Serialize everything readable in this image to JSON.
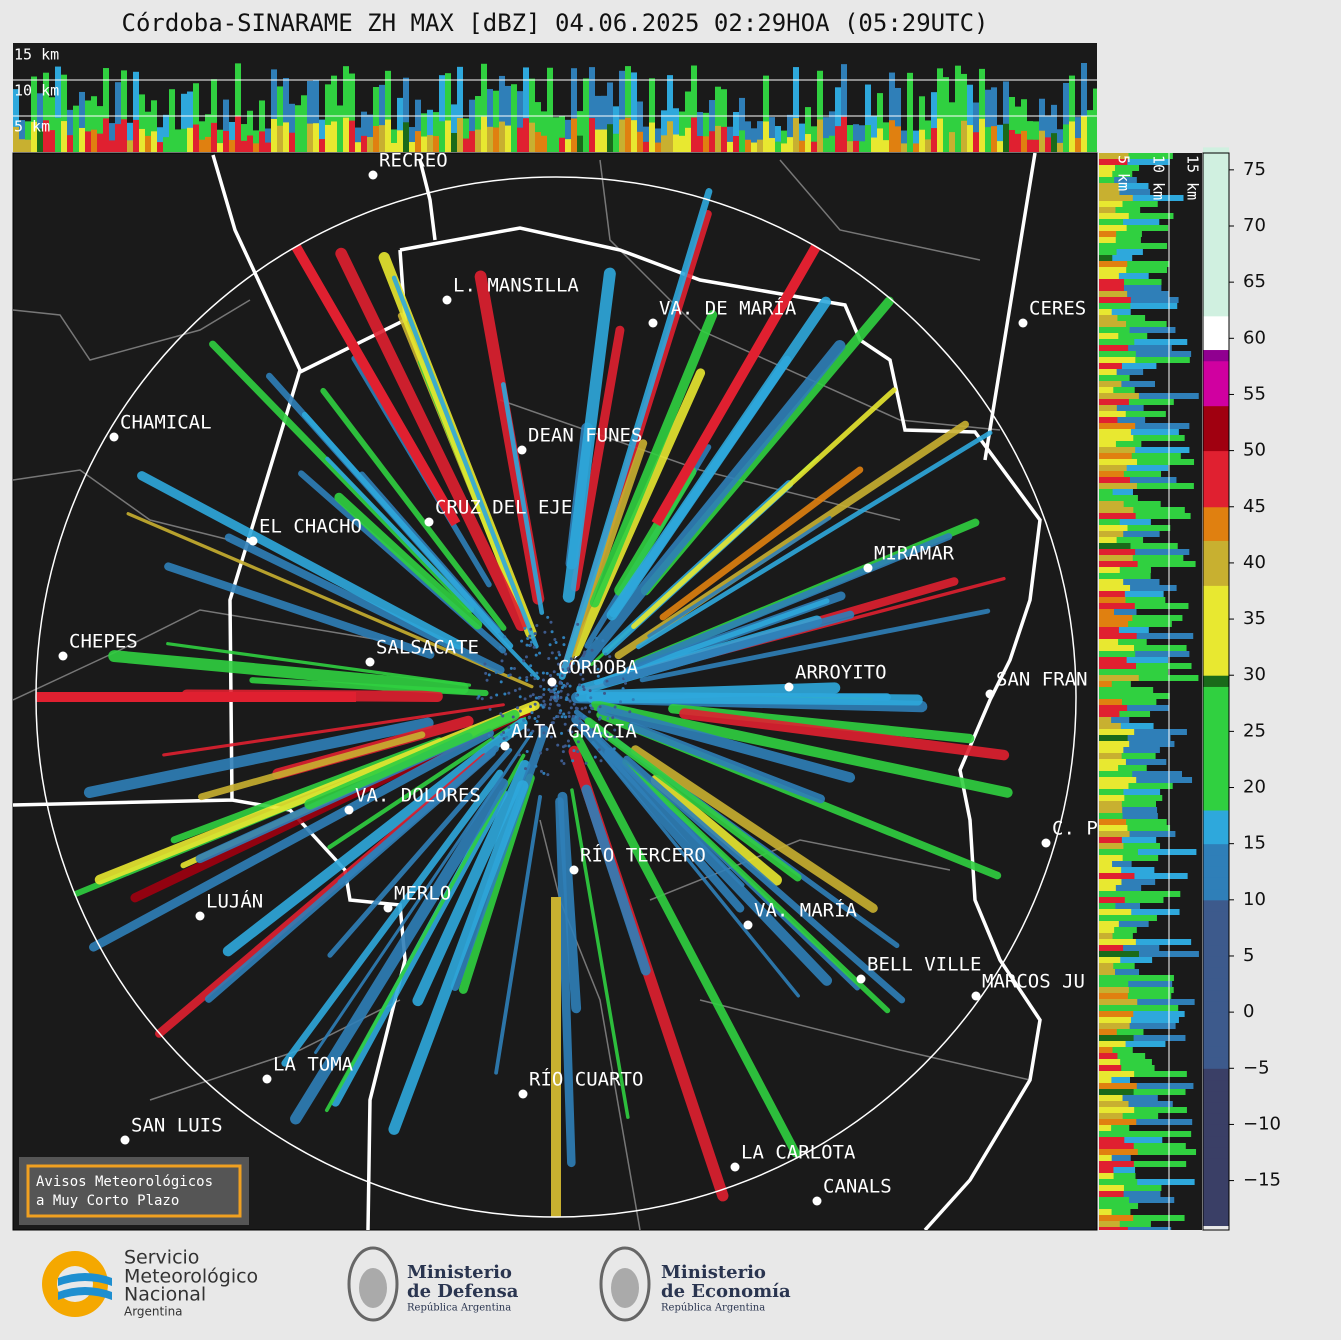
{
  "header": {
    "title": "Córdoba-SINARAME ZH MAX [dBZ] 04.06.2025 02:29HOA (05:29UTC)"
  },
  "top_panel": {
    "levels": [
      "15 km",
      "10 km",
      "5 km"
    ]
  },
  "side_panel": {
    "levels": [
      "5 km",
      "10 km",
      "15 km"
    ]
  },
  "map": {
    "cities": [
      "RECREO",
      "L. MANSILLA",
      "VA. DE MARÍA",
      "CERES",
      "CHAMICAL",
      "DEAN FUNES",
      "CRUZ DEL EJE",
      "EL CHACHO",
      "MIRAMAR",
      "CHEPES",
      "SALSACATE",
      "CÓRDOBA",
      "ARROYITO",
      "SAN FRAN",
      "ALTA GRACIA",
      "VA. DOLORES",
      "C. P",
      "RÍO TERCERO",
      "MERLO",
      "LUJÁN",
      "VA. MARÍA",
      "BELL VILLE",
      "MARCOS JU",
      "LA TOMA",
      "RÍO CUARTO",
      "SAN LUIS",
      "LA CARLOTA",
      "CANALS"
    ],
    "notice": [
      "Avisos Meteorológicos",
      "a Muy Corto Plazo"
    ]
  },
  "colorbar": {
    "lim": [
      -19.4,
      76.5
    ],
    "ticks": [
      {
        "value": -15,
        "label": "−15"
      },
      {
        "value": -10,
        "label": "−10"
      },
      {
        "value": -5,
        "label": "−5"
      },
      0,
      5,
      10,
      15,
      20,
      25,
      30,
      35,
      40,
      45,
      50,
      55,
      60,
      65,
      70,
      75
    ]
  },
  "footer": {
    "smn": [
      "Servicio",
      "Meteorológico",
      "Nacional",
      "Argentina"
    ],
    "defensa": [
      "Ministerio",
      "de Defensa",
      "República Argentina"
    ],
    "economia": [
      "Ministerio",
      "de Economía",
      "República Argentina"
    ]
  }
}
